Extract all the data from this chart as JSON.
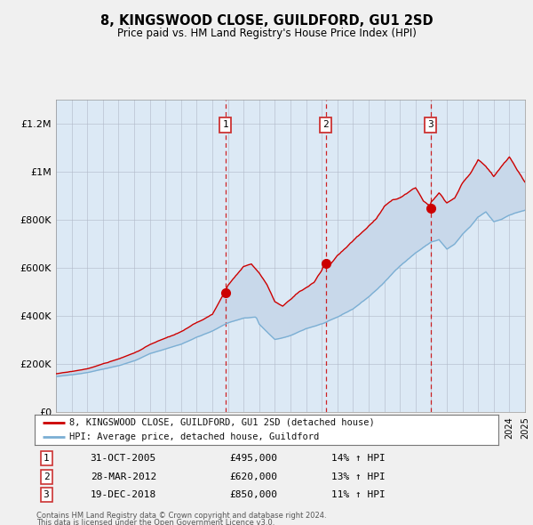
{
  "title": "8, KINGSWOOD CLOSE, GUILDFORD, GU1 2SD",
  "subtitle": "Price paid vs. HM Land Registry's House Price Index (HPI)",
  "outer_bg_color": "#f0f0f0",
  "plot_bg_color": "#dce9f5",
  "white_bg": "#ffffff",
  "sale_dates_num": [
    2005.833,
    2012.25,
    2018.958
  ],
  "sale_prices": [
    495000,
    620000,
    850000
  ],
  "sale_labels": [
    "1",
    "2",
    "3"
  ],
  "sale_pct": [
    "14%",
    "13%",
    "11%"
  ],
  "sale_date_labels": [
    "31-OCT-2005",
    "28-MAR-2012",
    "19-DEC-2018"
  ],
  "sale_price_labels": [
    "£495,000",
    "£620,000",
    "£850,000"
  ],
  "legend_line1": "8, KINGSWOOD CLOSE, GUILDFORD, GU1 2SD (detached house)",
  "legend_line2": "HPI: Average price, detached house, Guildford",
  "footer1": "Contains HM Land Registry data © Crown copyright and database right 2024.",
  "footer2": "This data is licensed under the Open Government Licence v3.0.",
  "red_color": "#cc0000",
  "blue_color": "#7bafd4",
  "shade_color": "#c8d8ea",
  "ylim": [
    0,
    1300000
  ],
  "yticks": [
    0,
    200000,
    400000,
    600000,
    800000,
    1000000,
    1200000
  ],
  "ytick_labels": [
    "£0",
    "£200K",
    "£400K",
    "£600K",
    "£800K",
    "£1M",
    "£1.2M"
  ],
  "x_start_year": 1995,
  "x_end_year": 2025,
  "hpi_anchors_x": [
    1995,
    1996,
    1997,
    1998,
    1999,
    2000,
    2001,
    2002,
    2003,
    2004,
    2005,
    2006,
    2007,
    2007.8,
    2008,
    2009,
    2010,
    2011,
    2012,
    2013,
    2014,
    2015,
    2016,
    2017,
    2018,
    2019,
    2019.5,
    2020,
    2020.5,
    2021,
    2021.5,
    2022,
    2022.5,
    2023,
    2023.5,
    2024,
    2024.5,
    2025
  ],
  "hpi_anchors_y": [
    148000,
    155000,
    165000,
    180000,
    195000,
    215000,
    245000,
    265000,
    285000,
    315000,
    340000,
    375000,
    395000,
    400000,
    370000,
    305000,
    320000,
    350000,
    370000,
    395000,
    430000,
    480000,
    540000,
    610000,
    665000,
    710000,
    720000,
    680000,
    700000,
    740000,
    770000,
    810000,
    830000,
    790000,
    800000,
    820000,
    830000,
    840000
  ],
  "red_anchors_x": [
    1995,
    1996,
    1997,
    1998,
    1999,
    2000,
    2001,
    2002,
    2003,
    2004,
    2005,
    2005.833,
    2006,
    2006.5,
    2007,
    2007.5,
    2008,
    2008.5,
    2009,
    2009.5,
    2010,
    2010.5,
    2011,
    2011.5,
    2012,
    2012.25,
    2012.5,
    2013,
    2013.5,
    2014,
    2014.5,
    2015,
    2015.5,
    2016,
    2016.5,
    2017,
    2017.5,
    2018,
    2018.5,
    2018.958,
    2019,
    2019.5,
    2020,
    2020.5,
    2021,
    2021.5,
    2022,
    2022.5,
    2023,
    2023.5,
    2024,
    2024.5,
    2025
  ],
  "red_anchors_y": [
    160000,
    168000,
    180000,
    200000,
    220000,
    245000,
    280000,
    305000,
    330000,
    365000,
    400000,
    495000,
    520000,
    560000,
    600000,
    610000,
    570000,
    520000,
    450000,
    430000,
    460000,
    490000,
    510000,
    530000,
    580000,
    620000,
    600000,
    640000,
    670000,
    700000,
    730000,
    760000,
    790000,
    840000,
    870000,
    880000,
    900000,
    920000,
    870000,
    850000,
    870000,
    910000,
    870000,
    890000,
    950000,
    990000,
    1050000,
    1020000,
    980000,
    1020000,
    1060000,
    1010000,
    960000
  ]
}
